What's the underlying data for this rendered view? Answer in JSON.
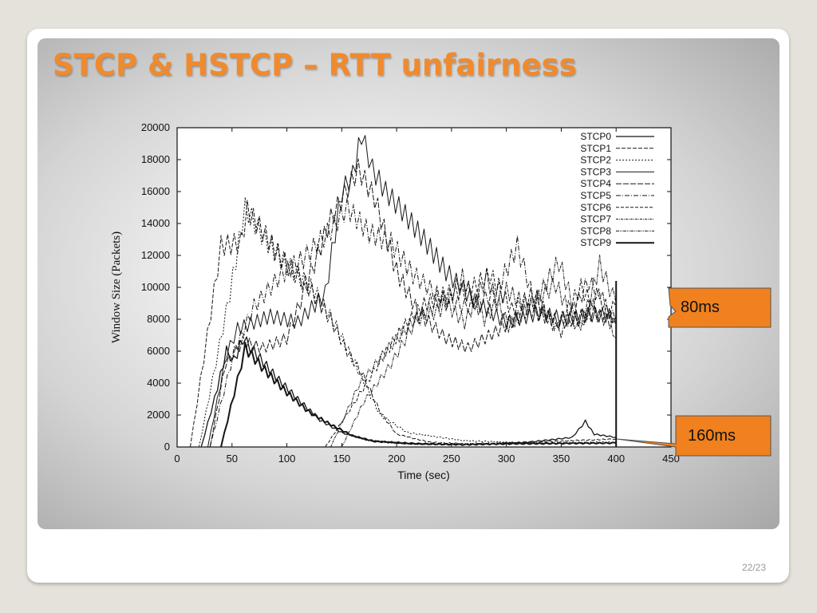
{
  "slide": {
    "title": "STCP & HSTCP – RTT unfairness",
    "page_number": "22/23"
  },
  "callouts": [
    {
      "label": "80ms",
      "color": "#f0811e"
    },
    {
      "label": "160ms",
      "color": "#f0811e"
    }
  ],
  "chart_data": {
    "type": "line",
    "xlabel": "Time (sec)",
    "ylabel": "Window Size (Packets)",
    "xlim": [
      0,
      450
    ],
    "ylim": [
      0,
      20000
    ],
    "x_ticks": [
      0,
      50,
      100,
      150,
      200,
      250,
      300,
      350,
      400,
      450
    ],
    "y_ticks": [
      0,
      2000,
      4000,
      6000,
      8000,
      10000,
      12000,
      14000,
      16000,
      18000,
      20000
    ],
    "grid": false,
    "legend_position": "top-right",
    "series": [
      {
        "name": "STCP0",
        "dash": "",
        "width": 1.3,
        "points": [
          [
            22,
            0
          ],
          [
            34,
            3000
          ],
          [
            45,
            6000
          ],
          [
            52,
            5400
          ],
          [
            60,
            6800
          ],
          [
            70,
            6000
          ],
          [
            90,
            4400
          ],
          [
            110,
            3000
          ],
          [
            130,
            1700
          ],
          [
            150,
            900
          ],
          [
            175,
            400
          ],
          [
            210,
            200
          ],
          [
            270,
            150
          ],
          [
            320,
            300
          ],
          [
            360,
            600
          ],
          [
            372,
            1600
          ],
          [
            380,
            800
          ],
          [
            400,
            600
          ]
        ]
      },
      {
        "name": "STCP1",
        "dash": "5 2",
        "width": 1,
        "points": [
          [
            12,
            0
          ],
          [
            40,
            12600
          ],
          [
            58,
            12800
          ],
          [
            64,
            14800
          ],
          [
            75,
            13800
          ],
          [
            95,
            11800
          ],
          [
            120,
            10000
          ],
          [
            140,
            8000
          ],
          [
            155,
            6000
          ],
          [
            170,
            4400
          ],
          [
            185,
            2200
          ],
          [
            200,
            800
          ],
          [
            230,
            300
          ],
          [
            260,
            200
          ],
          [
            300,
            250
          ],
          [
            340,
            350
          ],
          [
            400,
            500
          ]
        ]
      },
      {
        "name": "STCP2",
        "dash": "2 2",
        "width": 1,
        "points": [
          [
            20,
            0
          ],
          [
            48,
            9600
          ],
          [
            62,
            15000
          ],
          [
            80,
            13000
          ],
          [
            100,
            11400
          ],
          [
            125,
            9800
          ],
          [
            145,
            7500
          ],
          [
            165,
            4800
          ],
          [
            185,
            2000
          ],
          [
            210,
            900
          ],
          [
            260,
            400
          ],
          [
            320,
            250
          ],
          [
            400,
            300
          ]
        ]
      },
      {
        "name": "STCP3",
        "dash": "",
        "width": 1,
        "points": [
          [
            28,
            0
          ],
          [
            45,
            5800
          ],
          [
            55,
            7400
          ],
          [
            85,
            8200
          ],
          [
            110,
            7800
          ],
          [
            135,
            9600
          ],
          [
            150,
            16000
          ],
          [
            160,
            17000
          ],
          [
            168,
            19600
          ],
          [
            178,
            17400
          ],
          [
            190,
            16000
          ],
          [
            205,
            14800
          ],
          [
            225,
            13000
          ],
          [
            245,
            11000
          ],
          [
            270,
            9200
          ],
          [
            300,
            7800
          ],
          [
            330,
            8400
          ],
          [
            355,
            8000
          ],
          [
            375,
            8300
          ],
          [
            400,
            8200
          ]
        ]
      },
      {
        "name": "STCP4",
        "dash": "7 2",
        "width": 1,
        "points": [
          [
            30,
            0
          ],
          [
            44,
            5200
          ],
          [
            60,
            6600
          ],
          [
            78,
            6200
          ],
          [
            100,
            6800
          ],
          [
            125,
            11500
          ],
          [
            140,
            14300
          ],
          [
            165,
            17400
          ],
          [
            180,
            15600
          ],
          [
            200,
            11000
          ],
          [
            220,
            8400
          ],
          [
            245,
            6800
          ],
          [
            265,
            6200
          ],
          [
            290,
            7200
          ],
          [
            320,
            8600
          ],
          [
            350,
            7800
          ],
          [
            380,
            8400
          ],
          [
            400,
            7600
          ]
        ]
      },
      {
        "name": "STCP5",
        "dash": "6 2 1 2",
        "width": 1,
        "points": [
          [
            30,
            0
          ],
          [
            52,
            6000
          ],
          [
            70,
            8800
          ],
          [
            95,
            10800
          ],
          [
            115,
            11800
          ],
          [
            140,
            13600
          ],
          [
            155,
            15000
          ],
          [
            175,
            13400
          ],
          [
            195,
            12800
          ],
          [
            215,
            10800
          ],
          [
            240,
            9400
          ],
          [
            262,
            8800
          ],
          [
            290,
            9600
          ],
          [
            310,
            12600
          ],
          [
            325,
            9200
          ],
          [
            350,
            7200
          ],
          [
            375,
            10400
          ],
          [
            400,
            7800
          ]
        ]
      },
      {
        "name": "STCP6",
        "dash": "4 2",
        "width": 1,
        "points": [
          [
            135,
            0
          ],
          [
            160,
            2600
          ],
          [
            185,
            5400
          ],
          [
            205,
            7400
          ],
          [
            225,
            8900
          ],
          [
            245,
            9600
          ],
          [
            265,
            9800
          ],
          [
            285,
            10800
          ],
          [
            305,
            8600
          ],
          [
            325,
            9600
          ],
          [
            345,
            7400
          ],
          [
            368,
            10000
          ],
          [
            385,
            8200
          ],
          [
            400,
            8800
          ]
        ]
      },
      {
        "name": "STCP7",
        "dash": "3 1 1 1",
        "width": 1,
        "points": [
          [
            140,
            0
          ],
          [
            165,
            3800
          ],
          [
            190,
            6000
          ],
          [
            215,
            7900
          ],
          [
            240,
            8600
          ],
          [
            260,
            10600
          ],
          [
            280,
            8000
          ],
          [
            300,
            9800
          ],
          [
            320,
            8800
          ],
          [
            345,
            10200
          ],
          [
            365,
            7400
          ],
          [
            385,
            9800
          ],
          [
            400,
            6800
          ]
        ]
      },
      {
        "name": "STCP8",
        "dash": "4 1 1 1 1 1",
        "width": 1,
        "points": [
          [
            150,
            0
          ],
          [
            170,
            2800
          ],
          [
            195,
            5200
          ],
          [
            220,
            8200
          ],
          [
            242,
            9200
          ],
          [
            262,
            7800
          ],
          [
            282,
            10600
          ],
          [
            302,
            7600
          ],
          [
            325,
            9000
          ],
          [
            348,
            11600
          ],
          [
            368,
            7400
          ],
          [
            385,
            11400
          ],
          [
            400,
            9000
          ]
        ]
      },
      {
        "name": "STCP9",
        "dash": "",
        "width": 2,
        "points": [
          [
            40,
            0
          ],
          [
            55,
            4200
          ],
          [
            62,
            6200
          ],
          [
            80,
            4800
          ],
          [
            100,
            3400
          ],
          [
            120,
            2200
          ],
          [
            140,
            1400
          ],
          [
            160,
            700
          ],
          [
            180,
            350
          ],
          [
            220,
            200
          ],
          [
            260,
            150
          ],
          [
            300,
            200
          ],
          [
            400,
            250
          ]
        ]
      }
    ]
  }
}
